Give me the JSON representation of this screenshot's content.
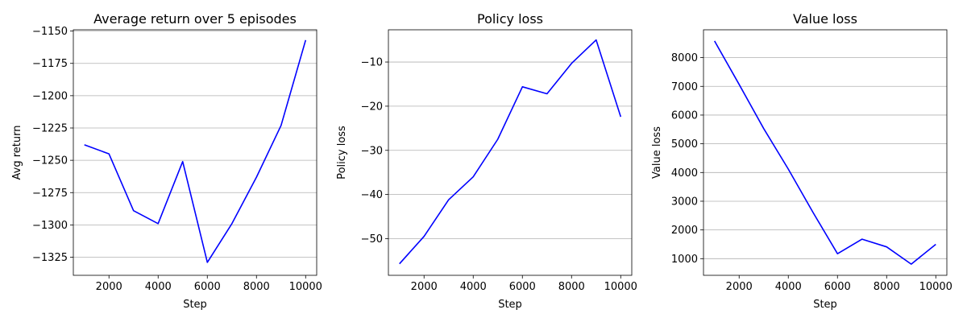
{
  "style": {
    "line_color": "#0000ff",
    "grid_color": "#b0b0b0",
    "background": "#ffffff"
  },
  "chart_data": [
    {
      "type": "line",
      "title": "Average return over 5 episodes",
      "xlabel": "Step",
      "ylabel": "Avg return",
      "xlim": [
        550,
        10450
      ],
      "ylim": [
        -1339,
        -1149
      ],
      "xticks": [
        2000,
        4000,
        6000,
        8000,
        10000
      ],
      "xtick_labels": [
        "2000",
        "4000",
        "6000",
        "8000",
        "10000"
      ],
      "yticks": [
        -1325,
        -1300,
        -1275,
        -1250,
        -1225,
        -1200,
        -1175,
        -1150
      ],
      "ytick_labels": [
        "−1325",
        "−1300",
        "−1275",
        "−1250",
        "−1225",
        "−1200",
        "−1175",
        "−1150"
      ],
      "grid": "horizontal",
      "x": [
        1000,
        2000,
        3000,
        4000,
        5000,
        6000,
        7000,
        8000,
        9000,
        10000
      ],
      "y": [
        -1238,
        -1245,
        -1289,
        -1299,
        -1251,
        -1329,
        -1299,
        -1263,
        -1223,
        -1157
      ]
    },
    {
      "type": "line",
      "title": "Policy loss",
      "xlabel": "Step",
      "ylabel": "Policy loss",
      "xlim": [
        550,
        10450
      ],
      "ylim": [
        -58.3,
        -2.7
      ],
      "xticks": [
        2000,
        4000,
        6000,
        8000,
        10000
      ],
      "xtick_labels": [
        "2000",
        "4000",
        "6000",
        "8000",
        "10000"
      ],
      "yticks": [
        -50,
        -40,
        -30,
        -20,
        -10
      ],
      "ytick_labels": [
        "−50",
        "−40",
        "−30",
        "−20",
        "−10"
      ],
      "grid": "horizontal",
      "x": [
        1000,
        2000,
        3000,
        4000,
        5000,
        6000,
        7000,
        8000,
        9000,
        10000
      ],
      "y": [
        -55.7,
        -49.5,
        -41.2,
        -36.0,
        -27.5,
        -15.6,
        -17.2,
        -10.3,
        -5.0,
        -22.4
      ]
    },
    {
      "type": "line",
      "title": "Value loss",
      "xlabel": "Step",
      "ylabel": "Value loss",
      "xlim": [
        550,
        10450
      ],
      "ylim": [
        420,
        8970
      ],
      "xticks": [
        2000,
        4000,
        6000,
        8000,
        10000
      ],
      "xtick_labels": [
        "2000",
        "4000",
        "6000",
        "8000",
        "10000"
      ],
      "yticks": [
        1000,
        2000,
        3000,
        4000,
        5000,
        6000,
        7000,
        8000
      ],
      "ytick_labels": [
        "1000",
        "2000",
        "3000",
        "4000",
        "5000",
        "6000",
        "7000",
        "8000"
      ],
      "grid": "horizontal",
      "x": [
        1000,
        2000,
        3000,
        4000,
        5000,
        6000,
        7000,
        8000,
        9000,
        10000
      ],
      "y": [
        8580,
        7070,
        5530,
        4120,
        2620,
        1170,
        1680,
        1410,
        810,
        1500
      ]
    }
  ]
}
